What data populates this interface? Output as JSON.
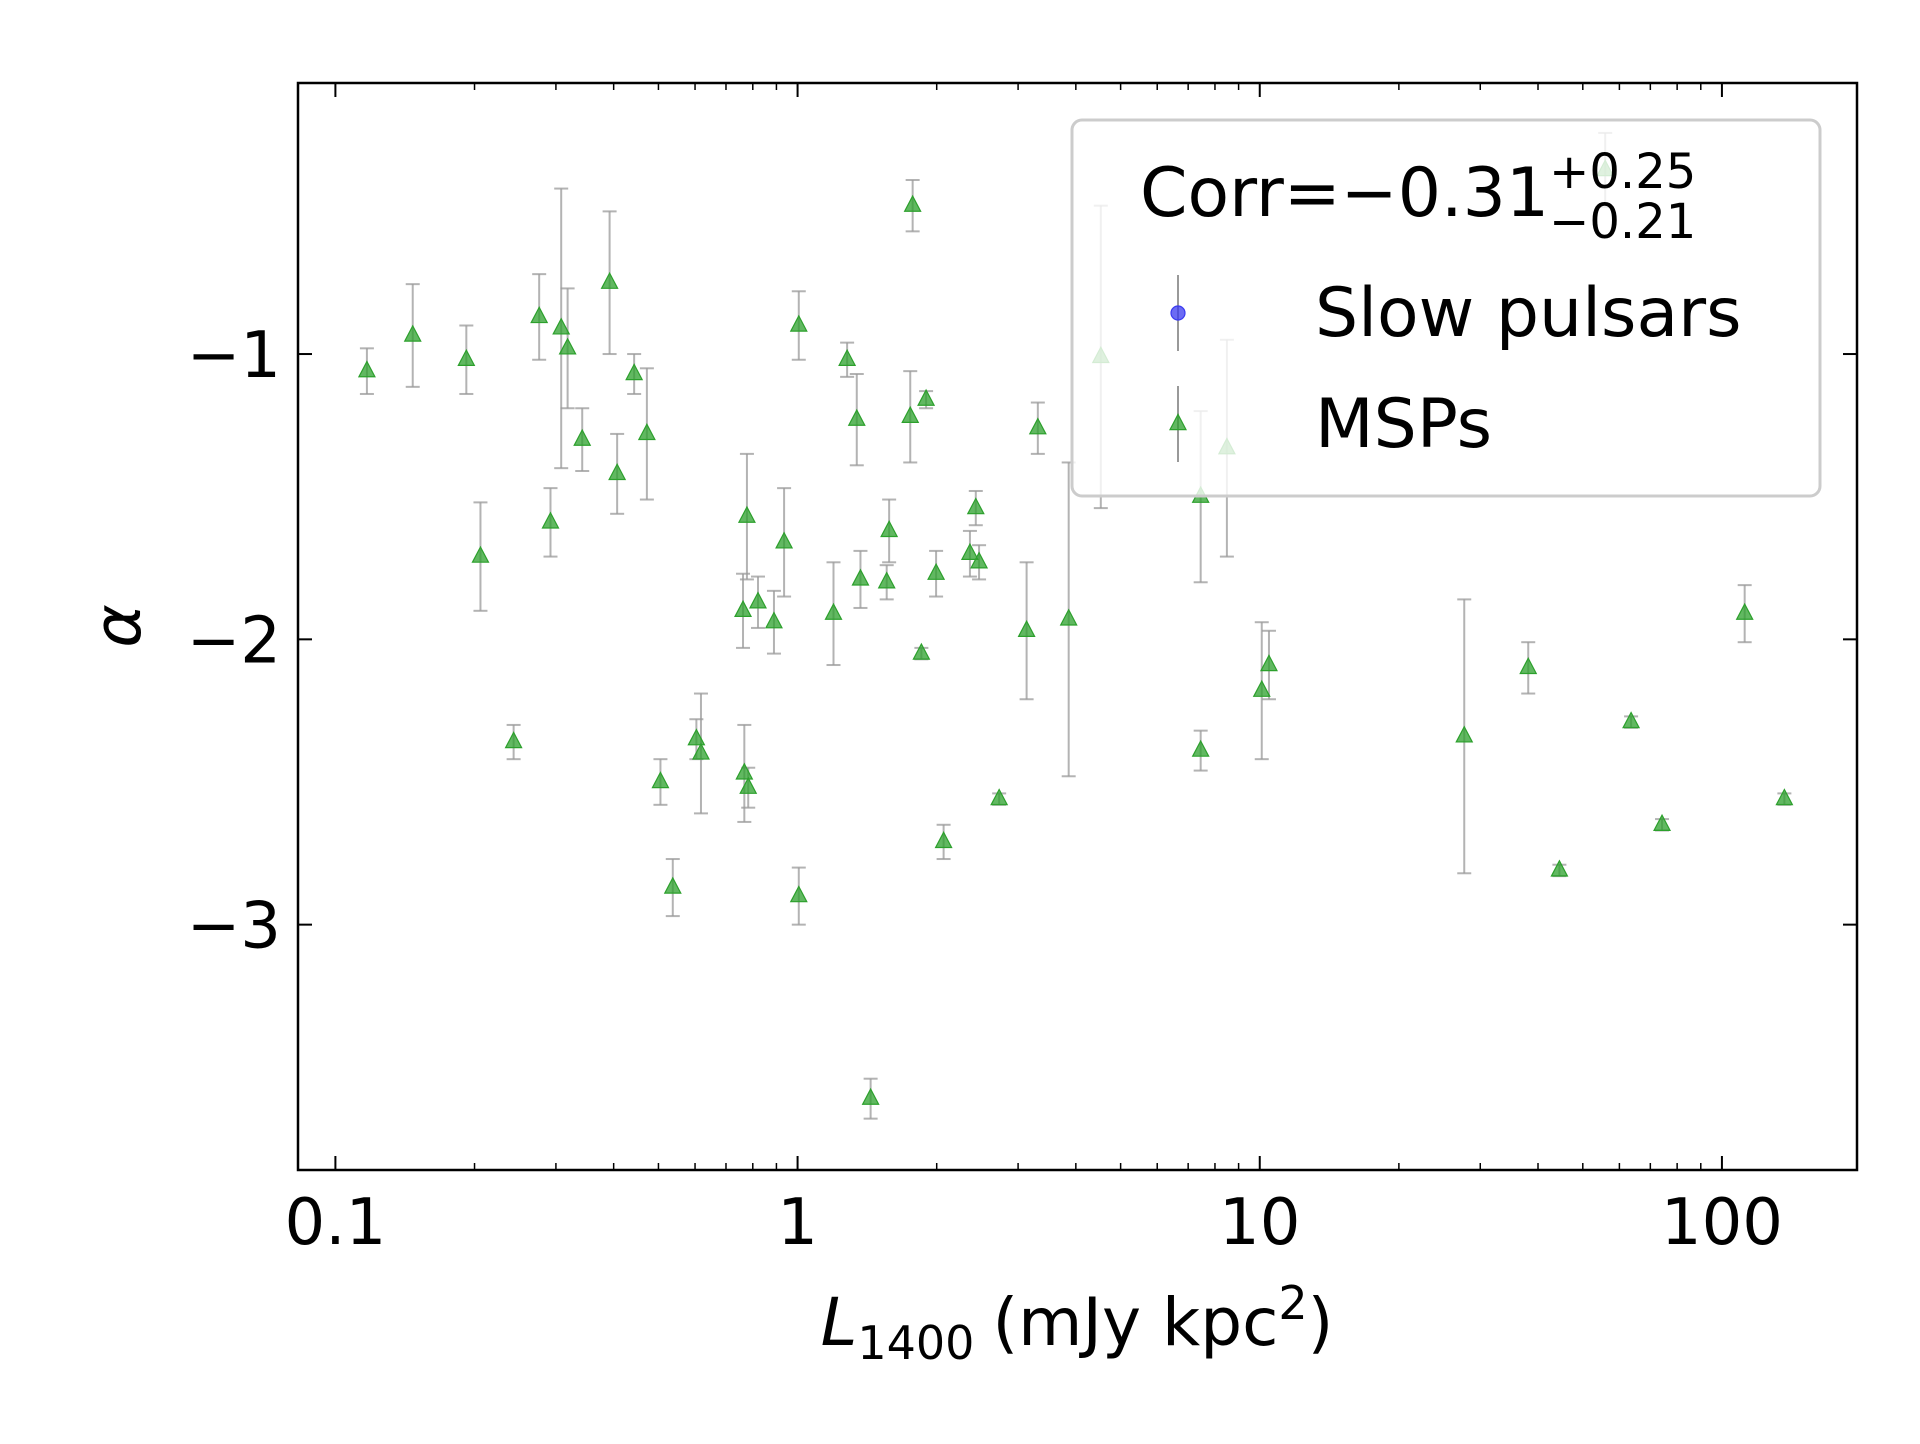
{
  "chart_data": {
    "type": "scatter",
    "x_label": {
      "symbol": "L",
      "subscript": "1400",
      "unit": "(mJy kpc",
      "power": "2",
      "close": ")"
    },
    "y_label": "α",
    "xscale": "log",
    "xlim": [
      0.083,
      196
    ],
    "ylim": [
      -3.86,
      -0.05
    ],
    "xticks": [
      0.1,
      1,
      10,
      100
    ],
    "x_minor_ticks": [
      0.2,
      0.3,
      0.4,
      0.5,
      0.6,
      0.7,
      0.8,
      0.9,
      2,
      3,
      4,
      5,
      6,
      7,
      8,
      9,
      20,
      30,
      40,
      50,
      60,
      70,
      80,
      90
    ],
    "yticks": [
      {
        "value": -1,
        "label": "−1"
      },
      {
        "value": -2,
        "label": "−2"
      },
      {
        "value": -3,
        "label": "−3"
      }
    ],
    "error_color": "#999999",
    "legend_position": "upper right",
    "legend_title": {
      "text": "Corr=−0.31",
      "upper": "+0.25",
      "lower": "−0.21"
    },
    "series": [
      {
        "name": "Slow pulsars",
        "color": "#3a3af0",
        "marker": "circle",
        "x": [],
        "values": [],
        "errors": []
      },
      {
        "name": "MSPs",
        "color": "#2ca02c",
        "marker": "triangle",
        "x": [
          0.117,
          0.147,
          0.192,
          0.206,
          0.243,
          0.276,
          0.292,
          0.308,
          0.318,
          0.342,
          0.392,
          0.407,
          0.443,
          0.472,
          0.505,
          0.537,
          0.604,
          0.618,
          0.762,
          0.767,
          0.777,
          0.782,
          0.821,
          0.889,
          0.935,
          1.006,
          1.006,
          1.196,
          1.28,
          1.343,
          1.368,
          1.439,
          1.559,
          1.578,
          1.753,
          1.774,
          1.853,
          1.897,
          1.994,
          2.07,
          2.36,
          2.43,
          2.47,
          2.73,
          3.13,
          3.31,
          3.86,
          4.53,
          7.45,
          7.45,
          8.49,
          10.1,
          10.47,
          27.7,
          38.1,
          44.5,
          55.9,
          63.6,
          74.2,
          112,
          136.5
        ],
        "values": [
          -1.06,
          -0.935,
          -1.02,
          -1.71,
          -2.36,
          -0.87,
          -1.59,
          -0.91,
          -0.98,
          -1.3,
          -0.75,
          -1.42,
          -1.07,
          -1.28,
          -2.5,
          -2.87,
          -2.35,
          -2.4,
          -1.9,
          -2.47,
          -1.57,
          -2.52,
          -1.87,
          -1.94,
          -1.66,
          -0.9,
          -2.9,
          -1.91,
          -1.02,
          -1.23,
          -1.79,
          -3.61,
          -1.8,
          -1.62,
          -1.22,
          -0.48,
          -2.05,
          -1.16,
          -1.77,
          -2.71,
          -1.7,
          -1.54,
          -1.73,
          -2.56,
          -1.97,
          -1.26,
          -1.93,
          -1.01,
          -1.5,
          -2.39,
          -1.33,
          -2.18,
          -2.09,
          -2.34,
          -2.1,
          -2.81,
          -0.355,
          -2.29,
          -2.65,
          -1.91,
          -2.56
        ],
        "errors": [
          0.08,
          0.18,
          0.12,
          0.19,
          0.06,
          0.15,
          0.12,
          0.49,
          0.21,
          0.11,
          0.25,
          0.14,
          0.07,
          0.23,
          0.08,
          0.1,
          0.07,
          0.21,
          0.13,
          0.17,
          0.22,
          0.07,
          0.09,
          0.11,
          0.19,
          0.12,
          0.1,
          0.18,
          0.06,
          0.16,
          0.1,
          0.07,
          0.06,
          0.11,
          0.16,
          0.09,
          0.02,
          0.03,
          0.08,
          0.06,
          0.08,
          0.06,
          0.06,
          0.02,
          0.24,
          0.09,
          0.55,
          0.53,
          0.3,
          0.07,
          0.38,
          0.24,
          0.12,
          0.48,
          0.09,
          0.02,
          0.13,
          0.02,
          0.02,
          0.1,
          0.02
        ]
      }
    ]
  }
}
